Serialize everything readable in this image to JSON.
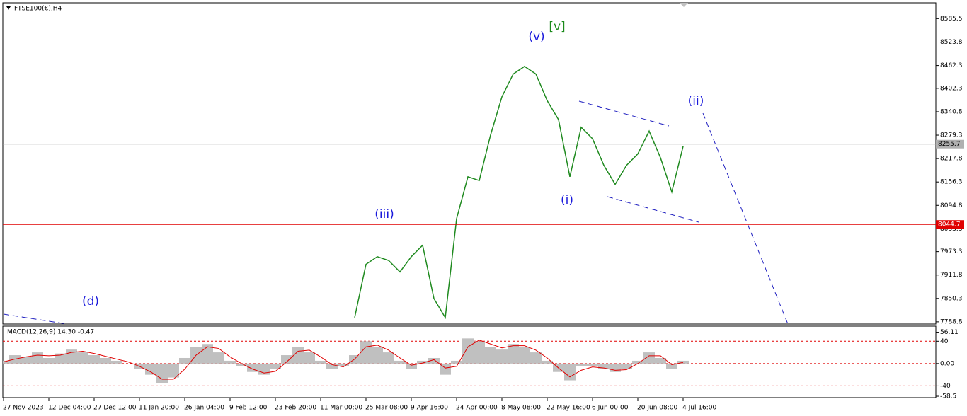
{
  "chart_data": [
    {
      "type": "line",
      "title": "FTSE100(€),H4",
      "categories": [
        "27 Nov 2023",
        null,
        null,
        null,
        "12 Dec 04:00",
        null,
        null,
        null,
        "27 Dec 12:00",
        null,
        null,
        null,
        "11 Jan 20:00",
        null,
        null,
        null,
        "26 Jan 04:00",
        null,
        null,
        null,
        "9 Feb 12:00",
        null,
        null,
        null,
        "23 Feb 20:00",
        null,
        null,
        null,
        "11 Mar 00:00",
        null,
        null,
        null,
        "25 Mar 08:00",
        null,
        null,
        null,
        "9 Apr 16:00",
        null,
        null,
        null,
        "24 Apr 00:00",
        null,
        null,
        null,
        "8 May 08:00",
        null,
        null,
        null,
        "22 May 16:00",
        null,
        null,
        null,
        "6 Jun 00:00",
        null,
        null,
        null,
        "20 Jun 08:00",
        null,
        null,
        null,
        "4 Jul 16:00",
        null,
        null,
        null,
        null,
        null,
        null,
        null,
        null,
        null,
        null,
        null,
        null,
        null,
        null,
        null,
        null,
        null,
        null,
        null,
        null,
        null,
        null
      ],
      "series": [
        {
          "name": "FTSE100",
          "color": "#1f8a1f",
          "values": [
            null,
            null,
            null,
            null,
            null,
            null,
            null,
            null,
            null,
            null,
            null,
            null,
            null,
            null,
            null,
            null,
            null,
            null,
            null,
            null,
            null,
            null,
            null,
            null,
            null,
            null,
            null,
            null,
            null,
            null,
            null,
            7800,
            7940,
            7960,
            7950,
            7920,
            7960,
            7990,
            7850,
            7800,
            8060,
            8170,
            8160,
            8280,
            8380,
            8440,
            8460,
            8440,
            8370,
            8320,
            8170,
            8300,
            8270,
            8200,
            8150,
            8200,
            8230,
            8290,
            8220,
            8130,
            8250,
            null,
            null,
            null,
            null,
            null,
            null,
            null,
            null,
            null,
            null,
            null,
            null,
            null,
            null,
            null,
            null,
            null,
            null,
            null,
            null,
            null,
            null
          ]
        }
      ],
      "ylim": [
        7783,
        8627
      ],
      "yticks": [
        8585.5,
        8523.8,
        8462.3,
        8402.3,
        8340.8,
        8279.3,
        8217.8,
        8156.3,
        8094.8,
        8033.3,
        7973.3,
        7911.8,
        7850.3,
        7788.8
      ],
      "hlines": [
        {
          "value": 8255.7,
          "color": "#b0b0b0"
        },
        {
          "value": 8044.7,
          "color": "#e00000"
        }
      ],
      "annotations": [
        {
          "text": "(v)",
          "color": "#1a1adc"
        },
        {
          "text": "[v]",
          "color": "#1a8a1a"
        },
        {
          "text": "(iii)",
          "color": "#1a1adc"
        },
        {
          "text": "(i)",
          "color": "#1a1adc"
        },
        {
          "text": "(ii)",
          "color": "#1a1adc"
        },
        {
          "text": "(d)",
          "color": "#1a1adc"
        }
      ]
    },
    {
      "type": "bar",
      "title": "MACD(12,26,9) 14.30 -0.47",
      "series": [
        {
          "name": "MACD",
          "color": "#c0c0c0",
          "values": [
            5,
            15,
            12,
            20,
            10,
            18,
            25,
            20,
            15,
            10,
            5,
            0,
            -10,
            -20,
            -35,
            -25,
            10,
            30,
            35,
            20,
            5,
            -5,
            -15,
            -20,
            -10,
            15,
            30,
            20,
            5,
            -10,
            -5,
            15,
            40,
            30,
            20,
            5,
            -10,
            5,
            10,
            -20,
            5,
            45,
            40,
            30,
            25,
            35,
            30,
            20,
            5,
            -15,
            -30,
            -5,
            -5,
            -10,
            -15,
            -10,
            5,
            20,
            10,
            -10,
            5,
            null,
            null,
            null,
            null,
            null,
            null,
            null,
            null,
            null,
            null,
            null,
            null,
            null,
            null,
            null,
            null,
            null,
            null,
            null,
            null,
            null,
            null
          ]
        },
        {
          "name": "Signal",
          "color": "#e00000",
          "style": "line",
          "values": [
            3,
            8,
            12,
            15,
            14,
            15,
            20,
            22,
            18,
            13,
            8,
            3,
            -5,
            -15,
            -28,
            -28,
            -10,
            15,
            30,
            27,
            12,
            0,
            -10,
            -17,
            -14,
            3,
            22,
            24,
            12,
            -2,
            -6,
            8,
            30,
            33,
            24,
            10,
            -3,
            1,
            7,
            -8,
            -5,
            30,
            42,
            35,
            28,
            32,
            32,
            24,
            10,
            -8,
            -24,
            -12,
            -6,
            -8,
            -12,
            -11,
            0,
            14,
            14,
            -2,
            2,
            null,
            null,
            null,
            null,
            null,
            null,
            null,
            null,
            null,
            null,
            null,
            null,
            null,
            null,
            null,
            null,
            null,
            null,
            null,
            null,
            null,
            null
          ]
        }
      ],
      "ylim": [
        -61,
        67
      ],
      "yticks": [
        56.11,
        40,
        {
          "value": 0,
          "label": "0.00"
        },
        -40,
        -58.5
      ],
      "levels": [
        40,
        0,
        -40
      ]
    }
  ]
}
